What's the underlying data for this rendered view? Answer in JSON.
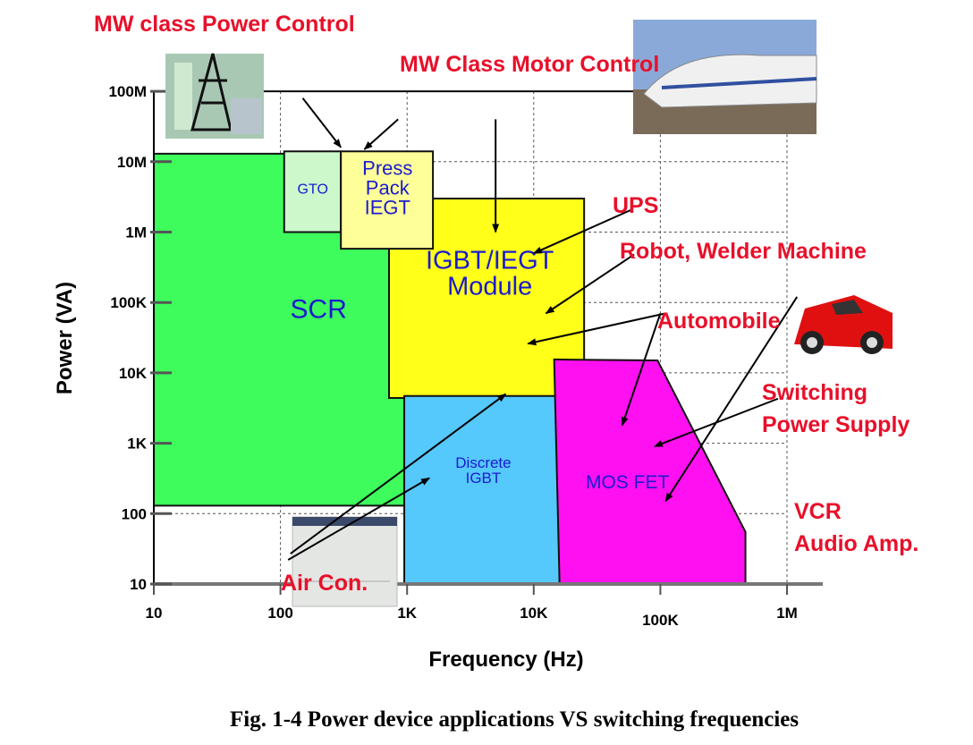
{
  "chart_data": {
    "type": "area",
    "xlabel": "Frequency (Hz)",
    "ylabel": "Power (VA)",
    "xscale": "log",
    "yscale": "log",
    "xlim": [
      10,
      1000000
    ],
    "ylim": [
      10,
      100000000
    ],
    "grid": true,
    "x_ticks": [
      {
        "v": 10,
        "label": "10"
      },
      {
        "v": 100,
        "label": "100"
      },
      {
        "v": 1000,
        "label": "1K"
      },
      {
        "v": 10000,
        "label": "10K"
      },
      {
        "v": 100000,
        "label": "100K"
      },
      {
        "v": 1000000,
        "label": "1M"
      }
    ],
    "y_ticks": [
      {
        "v": 10,
        "label": "10"
      },
      {
        "v": 100,
        "label": "100"
      },
      {
        "v": 1000,
        "label": "1K"
      },
      {
        "v": 10000,
        "label": "10K"
      },
      {
        "v": 100000,
        "label": "100K"
      },
      {
        "v": 1000000,
        "label": "1M"
      },
      {
        "v": 10000000,
        "label": "10M"
      },
      {
        "v": 100000000,
        "label": "100M"
      }
    ],
    "regions": [
      {
        "name": "SCR",
        "label": [
          "SCR"
        ],
        "color": "#3dfc5c",
        "points": [
          [
            10,
            13000000
          ],
          [
            950,
            13000000
          ],
          [
            950,
            130
          ],
          [
            10,
            130
          ]
        ]
      },
      {
        "name": "GTO",
        "label": [
          "GTO"
        ],
        "color": "#ccf8cc",
        "points": [
          [
            107,
            14000000
          ],
          [
            300,
            14000000
          ],
          [
            300,
            1000000
          ],
          [
            107,
            1000000
          ]
        ]
      },
      {
        "name": "IGBT/IEGT Module",
        "label": [
          "IGBT/IEGT",
          "Module"
        ],
        "color": "#ffff1a",
        "points": [
          [
            720,
            3000000
          ],
          [
            25000,
            3000000
          ],
          [
            25000,
            4400
          ],
          [
            720,
            4400
          ]
        ]
      },
      {
        "name": "Press Pack IEGT",
        "label": [
          "Press",
          "Pack",
          "IEGT"
        ],
        "color": "#ffff99",
        "points": [
          [
            300,
            14000000
          ],
          [
            1600,
            14000000
          ],
          [
            1600,
            580000
          ],
          [
            300,
            580000
          ]
        ]
      },
      {
        "name": "Discrete IGBT",
        "label": [
          "Discrete",
          "IGBT"
        ],
        "color": "#55c8fc",
        "points": [
          [
            950,
            4700
          ],
          [
            16000,
            4700
          ],
          [
            16000,
            10
          ],
          [
            950,
            10
          ]
        ]
      },
      {
        "name": "MOS FET",
        "label": [
          "MOS FET"
        ],
        "color": "#ff10f0",
        "points": [
          [
            14500,
            15500
          ],
          [
            95000,
            15000
          ],
          [
            470000,
            55
          ],
          [
            470000,
            10
          ],
          [
            16000,
            10
          ]
        ]
      }
    ],
    "annotations": [
      {
        "text": "MW class Power Control",
        "arrows": [
          [
            [
              150,
              80000000
            ],
            [
              300,
              16000000
            ]
          ]
        ]
      },
      {
        "text": "MW Class Motor Control",
        "arrows": [
          [
            [
              850,
              40000000
            ],
            [
              460,
              15000000
            ]
          ],
          [
            [
              5000,
              40000000
            ],
            [
              5000,
              1000000
            ]
          ]
        ]
      },
      {
        "text": "UPS",
        "arrows": [
          [
            [
              60000,
              2100000
            ],
            [
              10000,
              500000
            ]
          ]
        ]
      },
      {
        "text": "Robot, Welder Machine",
        "arrows": [
          [
            [
              62000,
              480000
            ],
            [
              12500,
              70000
            ]
          ]
        ]
      },
      {
        "text": "Automobile",
        "arrows": [
          [
            [
              110000,
              70000
            ],
            [
              9000,
              26000
            ]
          ],
          [
            [
              100000,
              70000
            ],
            [
              50000,
              1800
            ]
          ]
        ]
      },
      {
        "text": "Switching Power Supply",
        "arrows": [
          [
            [
              850000,
              4300
            ],
            [
              90000,
              900
            ]
          ]
        ]
      },
      {
        "text": "VCR Audio Amp.",
        "arrows": [
          [
            [
              1200000,
              120000
            ],
            [
              110000,
              150
            ]
          ]
        ]
      },
      {
        "text": "Air Con.",
        "arrows": [
          [
            [
              120,
              27
            ],
            [
              6000,
              5000
            ]
          ],
          [
            [
              115,
              22
            ],
            [
              1500,
              320
            ]
          ]
        ]
      }
    ]
  },
  "labels": {
    "mw_power": "MW class Power Control",
    "mw_motor": "MW Class Motor Control",
    "ups": "UPS",
    "robot": "Robot, Welder Machine",
    "automobile": "Automobile",
    "switching_1": "Switching",
    "switching_2": "Power Supply",
    "vcr_1": "VCR",
    "vcr_2": "Audio Amp.",
    "aircon": "Air Con."
  },
  "caption": "Fig. 1-4 Power device applications VS switching frequencies"
}
